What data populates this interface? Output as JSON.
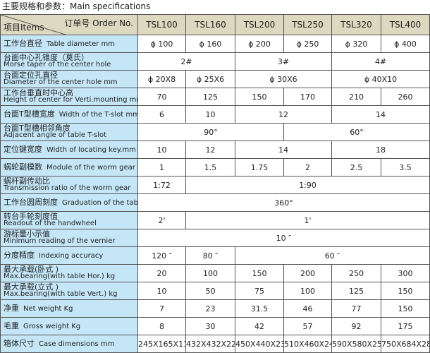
{
  "title": "主要规格和参数：Main specifications",
  "header": {
    "order_label": "订单号  Order No.",
    "items_label": "项目Items",
    "models": [
      "TSL100",
      "TSL160",
      "TSL200",
      "TSL250",
      "TSL320",
      "TSL400"
    ]
  },
  "colors": {
    "header_bg": "#ddd8c0",
    "label_bg": "#c5e6f7"
  },
  "rows": [
    {
      "cn": "工作台直径",
      "en": "Table diameter mm",
      "cells": [
        {
          "t": "ϕ 100",
          "s": 1
        },
        {
          "t": "ϕ 160",
          "s": 1
        },
        {
          "t": "ϕ 200",
          "s": 1
        },
        {
          "t": "ϕ 250",
          "s": 1
        },
        {
          "t": "ϕ 320",
          "s": 1
        },
        {
          "t": "ϕ 400",
          "s": 1
        }
      ]
    },
    {
      "cn": "台面中心孔锥度（莫氏）",
      "en": "Morse taper of the center hole",
      "cells": [
        {
          "t": "2#",
          "s": 2
        },
        {
          "t": "3#",
          "s": 2
        },
        {
          "t": "4#",
          "s": 2
        }
      ]
    },
    {
      "cn": "台面定位孔直径",
      "en": "Diameter of the center hole mm",
      "cells": [
        {
          "t": "ϕ 20X8",
          "s": 1
        },
        {
          "t": "ϕ 25X6",
          "s": 1
        },
        {
          "t": "ϕ 30X6",
          "s": 2
        },
        {
          "t": "ϕ 40X10",
          "s": 2
        }
      ]
    },
    {
      "cn": "工作台垂直时中心高",
      "en": "Height of center for Verti.mounting mm",
      "cells": [
        {
          "t": "70",
          "s": 1
        },
        {
          "t": "125",
          "s": 1
        },
        {
          "t": "150",
          "s": 1
        },
        {
          "t": "170",
          "s": 1
        },
        {
          "t": "210",
          "s": 1
        },
        {
          "t": "260",
          "s": 1
        }
      ]
    },
    {
      "cn": "台面T型槽宽度",
      "en": "Width of the T-slot mm",
      "cells": [
        {
          "t": "6",
          "s": 1
        },
        {
          "t": "10",
          "s": 1
        },
        {
          "t": "12",
          "s": 2
        },
        {
          "t": "14",
          "s": 2
        }
      ]
    },
    {
      "cn": "台面T型槽相邻角度",
      "en": "Adjacent angle of table T-slot",
      "cells": [
        {
          "t": "90°",
          "s": 3
        },
        {
          "t": "60°",
          "s": 3
        }
      ]
    },
    {
      "cn": "定位键宽度",
      "en": "Width of locating key.mm",
      "cells": [
        {
          "t": "10",
          "s": 1
        },
        {
          "t": "12",
          "s": 1
        },
        {
          "t": "14",
          "s": 2
        },
        {
          "t": "18",
          "s": 2
        }
      ]
    },
    {
      "cn": "蜗轮副模数",
      "en": "Module of the worm gear",
      "cells": [
        {
          "t": "1",
          "s": 1
        },
        {
          "t": "1.5",
          "s": 1
        },
        {
          "t": "1.75",
          "s": 1
        },
        {
          "t": "2",
          "s": 1
        },
        {
          "t": "2.5",
          "s": 1
        },
        {
          "t": "3.5",
          "s": 1
        }
      ]
    },
    {
      "cn": "蜗杆副传动比",
      "en": "Transmission ratio of the worm gear",
      "cells": [
        {
          "t": "1:72",
          "s": 1
        },
        {
          "t": "1:90",
          "s": 5
        }
      ]
    },
    {
      "cn": "工作台圆周刻度",
      "en": "Graduation of the table",
      "cells": [
        {
          "t": "360°",
          "s": 6
        }
      ]
    },
    {
      "cn": "转台手轮刻度值",
      "en": "Readout of the handwheel",
      "cells": [
        {
          "t": "2'",
          "s": 1
        },
        {
          "t": "1'",
          "s": 5
        }
      ]
    },
    {
      "cn": "游标量小示值",
      "en": "Minimum reading of the vernier",
      "cells": [
        {
          "t": "10 ″",
          "s": 6
        }
      ]
    },
    {
      "cn": "分度精度",
      "en": "Indexing accuracy",
      "cells": [
        {
          "t": "120 ″",
          "s": 1
        },
        {
          "t": "80 ″",
          "s": 1
        },
        {
          "t": "60 ″",
          "s": 4
        }
      ]
    },
    {
      "cn": "最大承载(卧式 )",
      "en": "Max.bearing(with table Hor.) kg",
      "cells": [
        {
          "t": "20",
          "s": 1
        },
        {
          "t": "100",
          "s": 1
        },
        {
          "t": "150",
          "s": 1
        },
        {
          "t": "200",
          "s": 1
        },
        {
          "t": "250",
          "s": 1
        },
        {
          "t": "300",
          "s": 1
        }
      ]
    },
    {
      "cn": "最大承载(立式 )",
      "en": "Max.bearing(with table Vert.) kg",
      "cells": [
        {
          "t": "10",
          "s": 1
        },
        {
          "t": "50",
          "s": 1
        },
        {
          "t": "75",
          "s": 1
        },
        {
          "t": "100",
          "s": 1
        },
        {
          "t": "125",
          "s": 1
        },
        {
          "t": "150",
          "s": 1
        }
      ]
    },
    {
      "cn": "净重",
      "en": "Net weight Kg",
      "cells": [
        {
          "t": "7",
          "s": 1
        },
        {
          "t": "23",
          "s": 1
        },
        {
          "t": "31.5",
          "s": 1
        },
        {
          "t": "46",
          "s": 1
        },
        {
          "t": "77",
          "s": 1
        },
        {
          "t": "150",
          "s": 1
        }
      ]
    },
    {
      "cn": "毛重",
      "en": "Gross weight Kg",
      "cells": [
        {
          "t": "8",
          "s": 1
        },
        {
          "t": "30",
          "s": 1
        },
        {
          "t": "42",
          "s": 1
        },
        {
          "t": "57",
          "s": 1
        },
        {
          "t": "92",
          "s": 1
        },
        {
          "t": "175",
          "s": 1
        }
      ]
    },
    {
      "cn": "箱体尺寸",
      "en": "Case dimensions mm",
      "cells": [
        {
          "t": "245X165X112",
          "s": 1
        },
        {
          "t": "432X432X220",
          "s": 1
        },
        {
          "t": "450X440X235",
          "s": 1
        },
        {
          "t": "510X460X240",
          "s": 1
        },
        {
          "t": "590X580X250",
          "s": 1
        },
        {
          "t": "750X684X286",
          "s": 1
        }
      ]
    }
  ]
}
